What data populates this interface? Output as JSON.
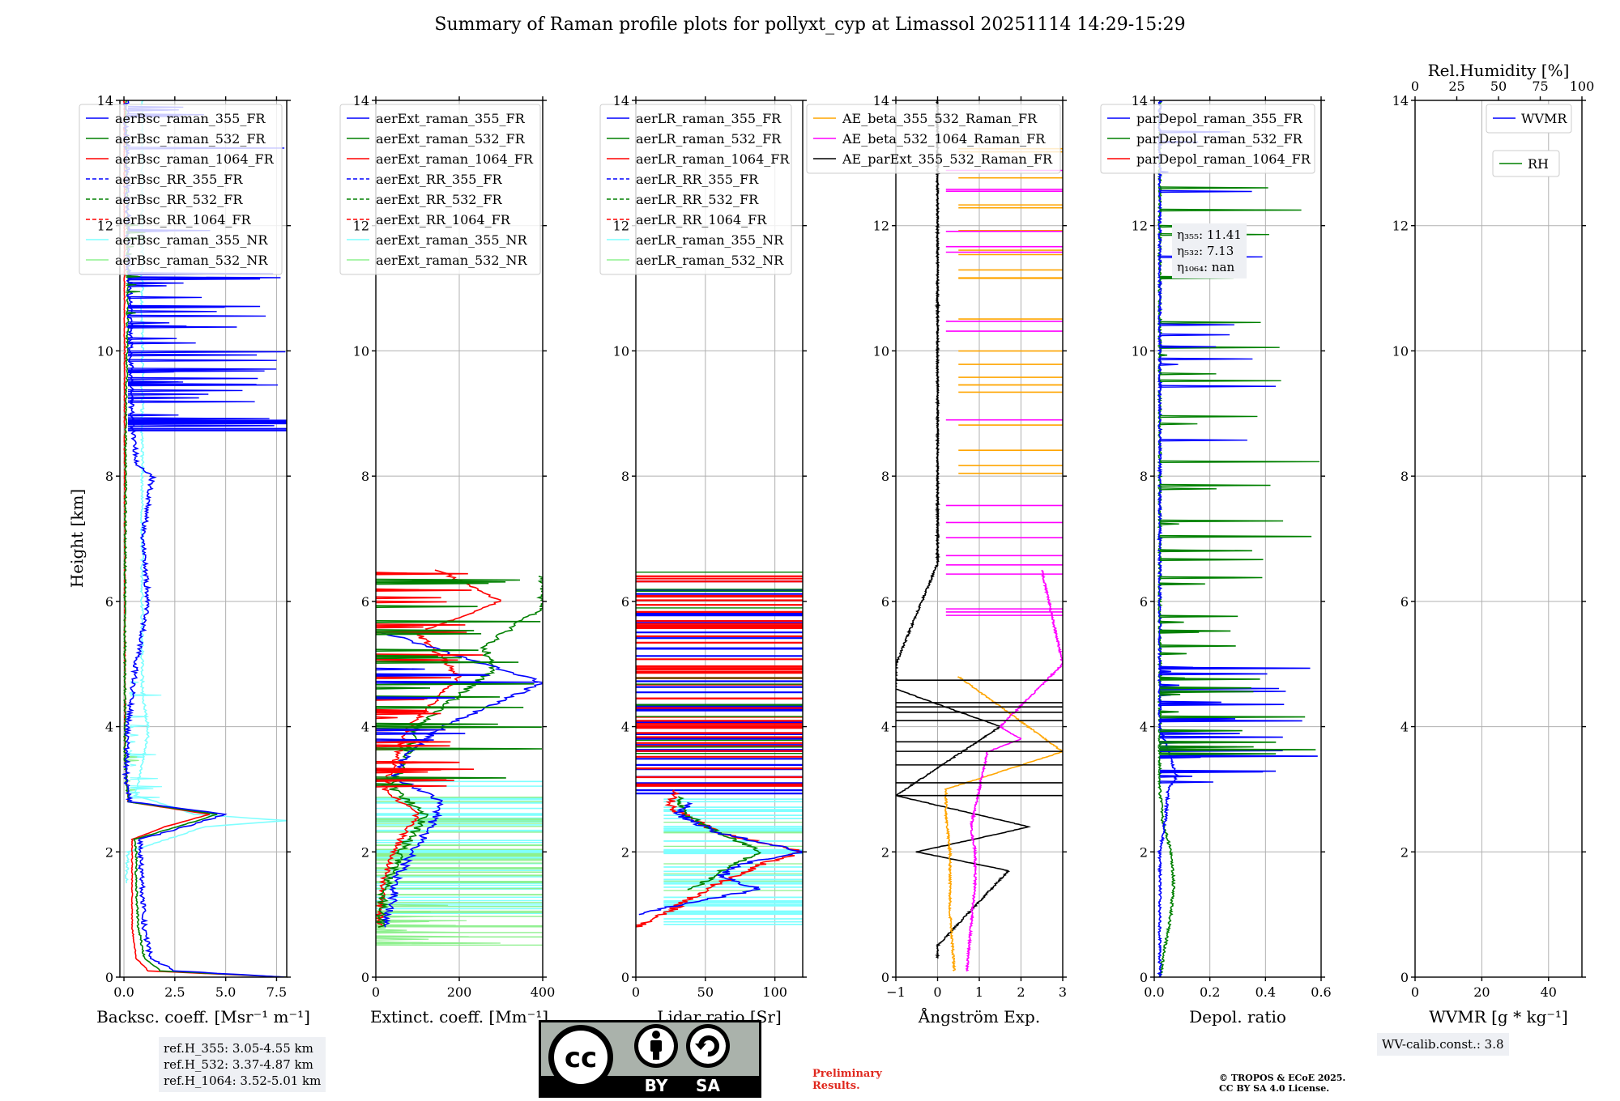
{
  "title": "Summary of Raman profile plots for pollyxt_cyp at Limassol 20251114 14:29-15:29",
  "colors": {
    "c355": "#0000ff",
    "c532": "#008000",
    "c1064": "#ff0000",
    "rr355": "#800080",
    "rr532": "#808000",
    "rr1064": "#fa8072",
    "nr355": "#7fffff",
    "nr532": "#8ef08e",
    "orange": "#ffa500",
    "magenta": "#ff00ff",
    "black": "#000000"
  },
  "ylabel": "Height [km]",
  "ylim": [
    0,
    14
  ],
  "yticks": [
    "0",
    "2",
    "4",
    "6",
    "8",
    "10",
    "12",
    "14"
  ],
  "panels": [
    {
      "key": "bsc",
      "xlabel": "Backsc. coeff. [Msr⁻¹ m⁻¹]",
      "xlim": [
        -0.2,
        8
      ],
      "xticks": [
        0,
        2.5,
        5,
        7.5
      ],
      "xticklabels": [
        "0.0",
        "2.5",
        "5.0",
        "7.5"
      ],
      "legend": [
        "aerBsc_raman_355_FR",
        "aerBsc_raman_532_FR",
        "aerBsc_raman_1064_FR",
        "aerBsc_RR_355_FR",
        "aerBsc_RR_532_FR",
        "aerBsc_RR_1064_FR",
        "aerBsc_raman_355_NR",
        "aerBsc_raman_532_NR"
      ]
    },
    {
      "key": "ext",
      "xlabel": "Extinct. coeff. [Mm⁻¹]",
      "xlim": [
        0,
        400
      ],
      "xticks": [
        0,
        200,
        400
      ],
      "xticklabels": [
        "0",
        "200",
        "400"
      ],
      "legend": [
        "aerExt_raman_355_FR",
        "aerExt_raman_532_FR",
        "aerExt_raman_1064_FR",
        "aerExt_RR_355_FR",
        "aerExt_RR_532_FR",
        "aerExt_RR_1064_FR",
        "aerExt_raman_355_NR",
        "aerExt_raman_532_NR"
      ]
    },
    {
      "key": "lr",
      "xlabel": "Lidar ratio [Sr]",
      "xlim": [
        0,
        120
      ],
      "xticks": [
        0,
        50,
        100
      ],
      "xticklabels": [
        "0",
        "50",
        "100"
      ],
      "legend": [
        "aerLR_raman_355_FR",
        "aerLR_raman_532_FR",
        "aerLR_raman_1064_FR",
        "aerLR_RR_355_FR",
        "aerLR_RR_532_FR",
        "aerLR_RR_1064_FR",
        "aerLR_raman_355_NR",
        "aerLR_raman_532_NR"
      ]
    },
    {
      "key": "ae",
      "xlabel": "Ångström Exp.",
      "xlim": [
        -1,
        3
      ],
      "xticks": [
        -1,
        0,
        1,
        2,
        3
      ],
      "xticklabels": [
        "−1",
        "0",
        "1",
        "2",
        "3"
      ],
      "legend": [
        "AE_beta_355_532_Raman_FR",
        "AE_beta_532_1064_Raman_FR",
        "AE_parExt_355_532_Raman_FR"
      ]
    },
    {
      "key": "dep",
      "xlabel": "Depol. ratio",
      "xlim": [
        0,
        0.6
      ],
      "xticks": [
        0,
        0.2,
        0.4,
        0.6
      ],
      "xticklabels": [
        "0.0",
        "0.2",
        "0.4",
        "0.6"
      ],
      "legend": [
        "parDepol_raman_355_FR",
        "parDepol_raman_532_FR",
        "parDepol_raman_1064_FR"
      ]
    },
    {
      "key": "wv",
      "xlabel": "WVMR [g * kg⁻¹]",
      "xlim": [
        0,
        50
      ],
      "xticks": [
        0,
        20,
        40
      ],
      "xticklabels": [
        "0",
        "20",
        "40"
      ],
      "legend": [
        "WVMR",
        "RH"
      ]
    }
  ],
  "rh_axis": {
    "label": "Rel.Humidity [%]",
    "ticks": [
      0,
      25,
      50,
      75,
      100
    ],
    "ticklabels": [
      "0",
      "25",
      "50",
      "75",
      "100"
    ]
  },
  "eta": {
    "e355": "η₃₅₅: 11.41",
    "e532": "η₅₃₂: 7.13",
    "e1064": "η₁₀₆₄: nan"
  },
  "refH": {
    "r355": "ref.H_355: 3.05-4.55 km",
    "r532": "ref.H_532: 3.37-4.87 km",
    "r1064": "ref.H_1064: 3.52-5.01 km"
  },
  "wv_calib": "WV-calib.const.: 3.8",
  "preliminary": {
    "line1": "Preliminary",
    "line2": "Results."
  },
  "copyright": {
    "line1": "© TROPOS & ECoE 2025.",
    "line2": "CC BY SA 4.0 License."
  },
  "cc_badge": {
    "cc": "cc",
    "by": "BY",
    "sa": "SA"
  },
  "chart_data": {
    "type": "line",
    "y_axis": {
      "label": "Height [km]",
      "range": [
        0,
        14
      ]
    },
    "panels": [
      {
        "name": "Backscatter",
        "x_range": [
          -0.2,
          8
        ],
        "series": [
          {
            "name": "aerBsc_raman_355_FR",
            "profile": [
              [
                0,
                8
              ],
              [
                0.1,
                2.5
              ],
              [
                0.3,
                1.3
              ],
              [
                0.8,
                1.0
              ],
              [
                1.5,
                0.9
              ],
              [
                2.0,
                0.8
              ],
              [
                2.2,
                0.8
              ],
              [
                2.4,
                3.0
              ],
              [
                2.6,
                5.0
              ],
              [
                2.8,
                0.3
              ],
              [
                3.2,
                0.1
              ],
              [
                4.0,
                0.2
              ],
              [
                5.0,
                0.6
              ],
              [
                6.0,
                1.2
              ],
              [
                7.0,
                0.9
              ],
              [
                8.0,
                1.4
              ],
              [
                8.2,
                0.6
              ],
              [
                9.0,
                0.4
              ],
              [
                10.5,
                0.3
              ],
              [
                12.0,
                0.2
              ],
              [
                14.0,
                0.1
              ]
            ]
          },
          {
            "name": "aerBsc_raman_532_FR",
            "profile": [
              [
                0,
                8
              ],
              [
                0.1,
                1.8
              ],
              [
                0.3,
                1.0
              ],
              [
                0.8,
                0.7
              ],
              [
                1.5,
                0.6
              ],
              [
                2.0,
                0.6
              ],
              [
                2.2,
                0.5
              ],
              [
                2.4,
                2.6
              ],
              [
                2.6,
                4.6
              ],
              [
                2.8,
                0.2
              ],
              [
                3.5,
                0.05
              ],
              [
                6.0,
                0.05
              ],
              [
                9.0,
                0.1
              ],
              [
                11.0,
                0.2
              ],
              [
                14.0,
                0.1
              ]
            ]
          },
          {
            "name": "aerBsc_raman_1064_FR",
            "profile": [
              [
                0,
                8
              ],
              [
                0.1,
                1.2
              ],
              [
                0.3,
                0.6
              ],
              [
                0.8,
                0.4
              ],
              [
                1.5,
                0.4
              ],
              [
                2.0,
                0.4
              ],
              [
                2.2,
                0.4
              ],
              [
                2.4,
                2.0
              ],
              [
                2.6,
                4.2
              ],
              [
                2.8,
                0.2
              ],
              [
                3.5,
                0.05
              ],
              [
                14.0,
                0.02
              ]
            ]
          },
          {
            "name": "aerBsc_raman_355_NR",
            "profile": [
              [
                1.5,
                0.1
              ],
              [
                2.0,
                0.2
              ],
              [
                2.4,
                4.0
              ],
              [
                2.5,
                8.0
              ],
              [
                2.6,
                3.5
              ],
              [
                2.9,
                0.6
              ],
              [
                3.3,
                0.8
              ],
              [
                3.9,
                1.2
              ],
              [
                4.6,
                0.9
              ],
              [
                14.0,
                0.9
              ]
            ]
          }
        ]
      },
      {
        "name": "Extinction",
        "x_range": [
          0,
          400
        ],
        "series": [
          {
            "name": "aerExt_raman_355_FR",
            "profile": [
              [
                0.8,
                20
              ],
              [
                1.2,
                40
              ],
              [
                1.6,
                50
              ],
              [
                2.0,
                90
              ],
              [
                2.4,
                130
              ],
              [
                2.8,
                160
              ],
              [
                3.2,
                40
              ],
              [
                3.6,
                80
              ],
              [
                4.0,
                160
              ],
              [
                4.7,
                400
              ],
              [
                5.0,
                260
              ],
              [
                5.5,
                20
              ]
            ]
          },
          {
            "name": "aerExt_raman_532_FR",
            "profile": [
              [
                0.8,
                10
              ],
              [
                1.4,
                20
              ],
              [
                2.0,
                60
              ],
              [
                2.6,
                120
              ],
              [
                3.0,
                40
              ],
              [
                4.0,
                100
              ],
              [
                4.9,
                280
              ],
              [
                5.3,
                260
              ],
              [
                5.9,
                400
              ],
              [
                6.4,
                400
              ]
            ]
          },
          {
            "name": "aerExt_raman_1064_FR",
            "profile": [
              [
                0.8,
                10
              ],
              [
                1.4,
                15
              ],
              [
                2.0,
                40
              ],
              [
                2.6,
                100
              ],
              [
                3.0,
                20
              ],
              [
                4.0,
                80
              ],
              [
                4.8,
                200
              ],
              [
                5.5,
                100
              ],
              [
                6.0,
                300
              ],
              [
                6.5,
                150
              ]
            ]
          }
        ]
      },
      {
        "name": "Lidar ratio",
        "x_range": [
          0,
          120
        ],
        "series": [
          {
            "name": "aerLR_raman_355_FR",
            "profile": [
              [
                1.0,
                0
              ],
              [
                1.2,
                40
              ],
              [
                1.4,
                90
              ],
              [
                1.6,
                60
              ],
              [
                1.8,
                75
              ],
              [
                2.0,
                120
              ],
              [
                2.3,
                60
              ],
              [
                2.6,
                30
              ],
              [
                2.8,
                40
              ]
            ]
          },
          {
            "name": "aerLR_raman_532_FR",
            "profile": [
              [
                1.4,
                40
              ],
              [
                1.8,
                70
              ],
              [
                2.0,
                90
              ],
              [
                2.3,
                60
              ],
              [
                2.6,
                35
              ],
              [
                2.9,
                30
              ]
            ]
          },
          {
            "name": "aerLR_raman_1064_FR",
            "profile": [
              [
                0.8,
                0
              ],
              [
                1.0,
                20
              ],
              [
                1.4,
                50
              ],
              [
                1.8,
                90
              ],
              [
                2.0,
                120
              ],
              [
                2.3,
                60
              ],
              [
                2.7,
                25
              ],
              [
                3.0,
                30
              ]
            ]
          }
        ]
      },
      {
        "name": "Angstrom",
        "x_range": [
          -1,
          3
        ],
        "series": [
          {
            "name": "AE_beta_355_532_Raman_FR",
            "profile": [
              [
                0.1,
                0.4
              ],
              [
                1.0,
                0.3
              ],
              [
                1.8,
                0.3
              ],
              [
                2.0,
                0.3
              ],
              [
                2.6,
                0.2
              ],
              [
                3.0,
                0.2
              ],
              [
                3.6,
                3.0
              ],
              [
                4.8,
                0.5
              ]
            ]
          },
          {
            "name": "AE_beta_532_1064_Raman_FR",
            "profile": [
              [
                0.1,
                0.7
              ],
              [
                0.8,
                0.8
              ],
              [
                1.5,
                0.9
              ],
              [
                2.0,
                0.9
              ],
              [
                2.4,
                0.8
              ],
              [
                3.0,
                1.0
              ],
              [
                3.6,
                1.2
              ],
              [
                3.8,
                2.0
              ],
              [
                4.0,
                1.5
              ],
              [
                5.0,
                3.0
              ],
              [
                6.5,
                2.5
              ]
            ]
          },
          {
            "name": "AE_parExt_355_532_Raman_FR",
            "profile": [
              [
                0.3,
                0
              ],
              [
                0.5,
                0
              ],
              [
                1.7,
                1.7
              ],
              [
                2.0,
                -0.5
              ],
              [
                2.4,
                2.2
              ],
              [
                2.9,
                -1.0
              ],
              [
                4.0,
                1.5
              ],
              [
                4.6,
                -1.0
              ],
              [
                5.0,
                -1.0
              ],
              [
                6.6,
                0
              ],
              [
                14.0,
                0
              ]
            ]
          }
        ]
      },
      {
        "name": "Depol",
        "x_range": [
          0,
          0.6
        ],
        "series": [
          {
            "name": "parDepol_raman_355_FR",
            "profile": [
              [
                0,
                0.02
              ],
              [
                0.5,
                0.02
              ],
              [
                1.0,
                0.02
              ],
              [
                2.0,
                0.02
              ],
              [
                2.5,
                0.04
              ],
              [
                3.0,
                0.05
              ],
              [
                3.2,
                0.08
              ],
              [
                4.0,
                0.02
              ],
              [
                14.0,
                0.02
              ]
            ]
          },
          {
            "name": "parDepol_raman_532_FR",
            "profile": [
              [
                0,
                0.02
              ],
              [
                0.5,
                0.04
              ],
              [
                1.0,
                0.06
              ],
              [
                1.5,
                0.07
              ],
              [
                2.0,
                0.06
              ],
              [
                2.5,
                0.03
              ],
              [
                3.0,
                0.02
              ],
              [
                14.0,
                0.02
              ]
            ]
          }
        ]
      },
      {
        "name": "WVMR",
        "x_range": [
          0,
          50
        ],
        "series": []
      }
    ]
  }
}
